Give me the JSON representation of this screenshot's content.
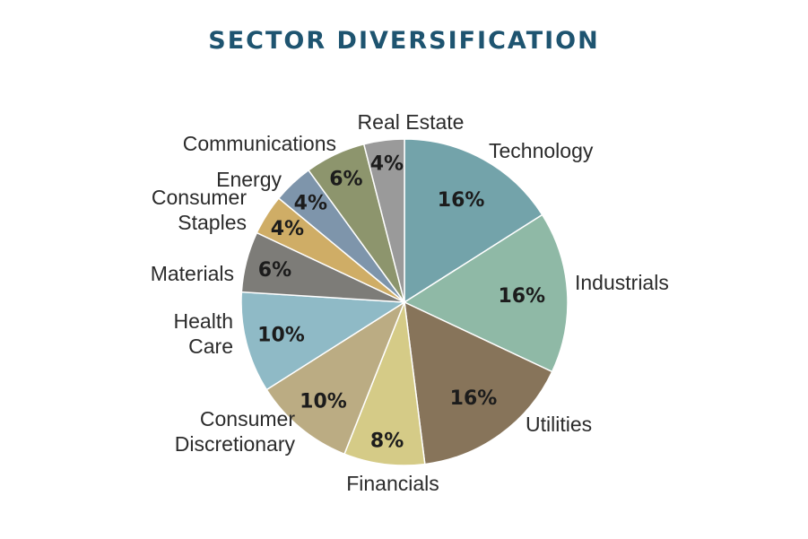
{
  "chart_data": {
    "type": "pie",
    "title": "SECTOR DIVERSIFICATION",
    "slices": [
      {
        "label": [
          "Technology"
        ],
        "value": 16,
        "pct_text": "16%",
        "color": "#73a3aa"
      },
      {
        "label": [
          "Industrials"
        ],
        "value": 16,
        "pct_text": "16%",
        "color": "#8fb9a6"
      },
      {
        "label": [
          "Utilities"
        ],
        "value": 16,
        "pct_text": "16%",
        "color": "#87745a"
      },
      {
        "label": [
          "Financials"
        ],
        "value": 8,
        "pct_text": "8%",
        "color": "#d5cb87"
      },
      {
        "label": [
          "Consumer",
          "Discretionary"
        ],
        "value": 10,
        "pct_text": "10%",
        "color": "#bbac83"
      },
      {
        "label": [
          "Health",
          "Care"
        ],
        "value": 10,
        "pct_text": "10%",
        "color": "#8fbac6"
      },
      {
        "label": [
          "Materials"
        ],
        "value": 6,
        "pct_text": "6%",
        "color": "#7d7c78"
      },
      {
        "label": [
          "Consumer",
          "Staples"
        ],
        "value": 4,
        "pct_text": "4%",
        "color": "#cfad66"
      },
      {
        "label": [
          "Energy"
        ],
        "value": 4,
        "pct_text": "4%",
        "color": "#7e95ab"
      },
      {
        "label": [
          "Communications"
        ],
        "value": 6,
        "pct_text": "6%",
        "color": "#8d956d"
      },
      {
        "label": [
          "Real Estate"
        ],
        "value": 4,
        "pct_text": "4%",
        "color": "#9a9a9a"
      }
    ]
  }
}
